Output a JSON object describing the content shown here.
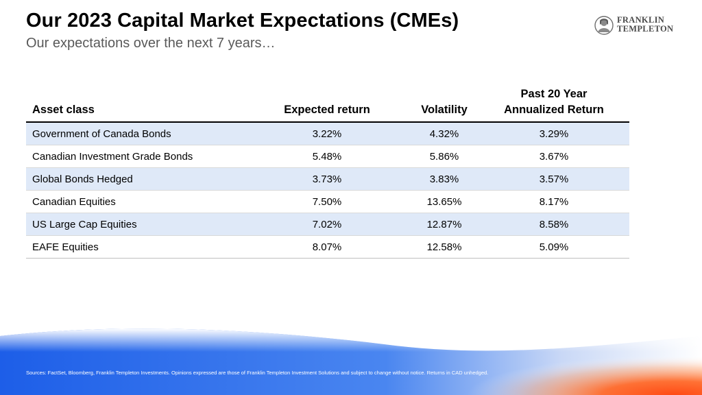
{
  "header": {
    "title": "Our 2023 Capital Market Expectations (CMEs)",
    "subtitle": "Our expectations over the next 7 years…"
  },
  "logo": {
    "line1": "FRANKLIN",
    "line2": "TEMPLETON",
    "icon": "franklin-portrait-icon"
  },
  "table": {
    "columns": {
      "asset": "Asset class",
      "expected": "Expected return",
      "volatility": "Volatility",
      "past_line1": "Past 20 Year",
      "past_line2": "Annualized Return"
    },
    "rows": [
      {
        "asset": "Government of Canada Bonds",
        "expected": "3.22%",
        "volatility": "4.32%",
        "past": "3.29%"
      },
      {
        "asset": "Canadian Investment Grade Bonds",
        "expected": "5.48%",
        "volatility": "5.86%",
        "past": "3.67%"
      },
      {
        "asset": "Global Bonds Hedged",
        "expected": "3.73%",
        "volatility": "3.83%",
        "past": "3.57%"
      },
      {
        "asset": "Canadian Equities",
        "expected": "7.50%",
        "volatility": "13.65%",
        "past": "8.17%"
      },
      {
        "asset": "US Large Cap Equities",
        "expected": "7.02%",
        "volatility": "12.87%",
        "past": "8.58%"
      },
      {
        "asset": "EAFE Equities",
        "expected": "8.07%",
        "volatility": "12.58%",
        "past": "5.09%"
      }
    ]
  },
  "colors": {
    "row_shade": "#dfe9f8",
    "wave_blue": "#2f6fe8",
    "wave_orange": "#ff5a1f"
  },
  "footer": {
    "note": "Sources: FactSet, Bloomberg, Franklin Templeton Investments.  Opinions expressed are those of Franklin Templeton Investment Solutions and subject to change without notice.  Returns in CAD unhedged."
  }
}
